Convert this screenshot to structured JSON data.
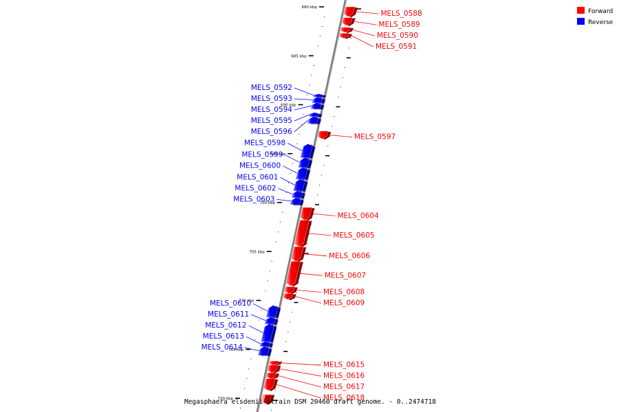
{
  "caption": "Megasphaera elsdenii strain DSM 20460 draft genome. - 0..2474718",
  "legend": [
    {
      "label": "Forward",
      "color": "#ff0000"
    },
    {
      "label": "Reverse",
      "color": "#0000ff"
    }
  ],
  "colors": {
    "forward": "#ff0000",
    "reverse": "#0000ff",
    "backbone": "#808080"
  },
  "ticks": [
    {
      "kbp": 680,
      "label": "680 kbp"
    },
    {
      "kbp": 685,
      "label": "685 kbp"
    },
    {
      "kbp": 690,
      "label": "690 kbp"
    },
    {
      "kbp": 695,
      "label": "695 kbp"
    },
    {
      "kbp": 700,
      "label": "700 kbp"
    },
    {
      "kbp": 705,
      "label": "705 kbp"
    },
    {
      "kbp": 710,
      "label": "710 kbp"
    },
    {
      "kbp": 715,
      "label": "715 kbp"
    },
    {
      "kbp": 720,
      "label": "720 kbp"
    }
  ],
  "genes": [
    {
      "name": "MELS_0588",
      "strand": "forward",
      "start_kbp": 680.0,
      "end_kbp": 681.0
    },
    {
      "name": "MELS_0589",
      "strand": "forward",
      "start_kbp": 681.1,
      "end_kbp": 681.9
    },
    {
      "name": "MELS_0590",
      "strand": "forward",
      "start_kbp": 682.1,
      "end_kbp": 682.6
    },
    {
      "name": "MELS_0591",
      "strand": "forward",
      "start_kbp": 682.7,
      "end_kbp": 683.2
    },
    {
      "name": "MELS_0592",
      "strand": "reverse",
      "start_kbp": 688.9,
      "end_kbp": 689.2
    },
    {
      "name": "MELS_0593",
      "strand": "reverse",
      "start_kbp": 689.2,
      "end_kbp": 689.8
    },
    {
      "name": "MELS_0594",
      "strand": "reverse",
      "start_kbp": 689.8,
      "end_kbp": 690.4
    },
    {
      "name": "MELS_0595",
      "strand": "reverse",
      "start_kbp": 690.8,
      "end_kbp": 691.2
    },
    {
      "name": "MELS_0596",
      "strand": "reverse",
      "start_kbp": 691.2,
      "end_kbp": 691.9
    },
    {
      "name": "MELS_0597",
      "strand": "forward",
      "start_kbp": 692.7,
      "end_kbp": 693.5
    },
    {
      "name": "MELS_0598",
      "strand": "reverse",
      "start_kbp": 694.0,
      "end_kbp": 695.4
    },
    {
      "name": "MELS_0599",
      "strand": "reverse",
      "start_kbp": 695.4,
      "end_kbp": 696.4
    },
    {
      "name": "MELS_0600",
      "strand": "reverse",
      "start_kbp": 696.4,
      "end_kbp": 697.6
    },
    {
      "name": "MELS_0601",
      "strand": "reverse",
      "start_kbp": 697.6,
      "end_kbp": 698.8
    },
    {
      "name": "MELS_0602",
      "strand": "reverse",
      "start_kbp": 698.8,
      "end_kbp": 699.5
    },
    {
      "name": "MELS_0603",
      "strand": "reverse",
      "start_kbp": 699.5,
      "end_kbp": 700.2
    },
    {
      "name": "MELS_0604",
      "strand": "forward",
      "start_kbp": 700.5,
      "end_kbp": 701.8
    },
    {
      "name": "MELS_0605",
      "strand": "forward",
      "start_kbp": 701.8,
      "end_kbp": 704.5
    },
    {
      "name": "MELS_0606",
      "strand": "forward",
      "start_kbp": 704.5,
      "end_kbp": 706.0
    },
    {
      "name": "MELS_0607",
      "strand": "forward",
      "start_kbp": 706.0,
      "end_kbp": 708.5
    },
    {
      "name": "MELS_0608",
      "strand": "forward",
      "start_kbp": 708.6,
      "end_kbp": 709.3
    },
    {
      "name": "MELS_0609",
      "strand": "forward",
      "start_kbp": 709.3,
      "end_kbp": 709.9
    },
    {
      "name": "MELS_0610",
      "strand": "reverse",
      "start_kbp": 710.5,
      "end_kbp": 711.7
    },
    {
      "name": "MELS_0611",
      "strand": "reverse",
      "start_kbp": 711.7,
      "end_kbp": 712.4
    },
    {
      "name": "MELS_0612",
      "strand": "reverse",
      "start_kbp": 712.4,
      "end_kbp": 714.2
    },
    {
      "name": "MELS_0613",
      "strand": "reverse",
      "start_kbp": 714.2,
      "end_kbp": 714.7
    },
    {
      "name": "MELS_0614",
      "strand": "reverse",
      "start_kbp": 714.7,
      "end_kbp": 715.6
    },
    {
      "name": "MELS_0615",
      "strand": "forward",
      "start_kbp": 716.2,
      "end_kbp": 716.6
    },
    {
      "name": "MELS_0616",
      "strand": "forward",
      "start_kbp": 716.6,
      "end_kbp": 717.4
    },
    {
      "name": "MELS_0617",
      "strand": "forward",
      "start_kbp": 717.4,
      "end_kbp": 718.0
    },
    {
      "name": "MELS_0618",
      "strand": "forward",
      "start_kbp": 718.0,
      "end_kbp": 719.2
    },
    {
      "name": "",
      "strand": "forward",
      "start_kbp": 719.6,
      "end_kbp": 720.6
    }
  ]
}
